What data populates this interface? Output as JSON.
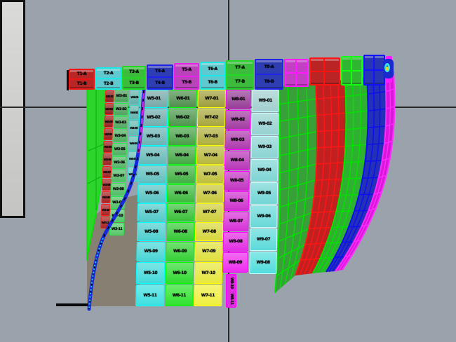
{
  "colors": {
    "background": "#9aa3ac",
    "backdrop_fill": "#d4d4d2",
    "ground_fill": "#867f72",
    "green_strip_fill": "#2cd42c",
    "green_strip_edge": "#00e400",
    "curve_blue": "#1828dc",
    "curve_magenta": "#d024d8",
    "curve_dash": "#000000",
    "curve_tail_cyan": "#22cccc",
    "curve_red_dash": "#cc3300",
    "glyph_body": "#1a2acc",
    "glyph_arc": "#2ee8e8",
    "glyph_dot": "#e8d820",
    "top": {
      "red": {
        "edge": "#f01515",
        "fill": "#b92626"
      },
      "cyan": {
        "edge": "#1ae8e8",
        "fill": "#5fc9cf"
      },
      "green": {
        "edge": "#22d822",
        "fill": "#3dbb3d"
      },
      "blue": {
        "edge": "#2222e8",
        "fill": "#2e3db2"
      },
      "magenta": {
        "edge": "#e822e8",
        "fill": "#b944b9"
      },
      "grid_magenta": {
        "fill": "#c33fc3",
        "line": "#ff1aff"
      },
      "grid_red": {
        "fill": "#bb2424",
        "line": "#ff1212"
      },
      "grid_green": {
        "fill": "#2fb52f",
        "line": "#12ff12"
      },
      "grid_blue": {
        "fill": "#2836b5",
        "line": "#1212ff"
      }
    }
  },
  "top_row": {
    "panels": [
      {
        "type": "labeled",
        "color": "red",
        "labels": [
          "T1-A",
          "T1-B"
        ]
      },
      {
        "type": "labeled",
        "color": "cyan",
        "labels": [
          "T2-A",
          "T2-B"
        ]
      },
      {
        "type": "labeled",
        "color": "green",
        "labels": [
          "T3-A",
          "T3-B"
        ]
      },
      {
        "type": "labeled",
        "color": "blue",
        "labels": [
          "T4-A",
          "T4-B"
        ]
      },
      {
        "type": "labeled",
        "color": "magenta",
        "labels": [
          "T5-A",
          "T5-B"
        ]
      },
      {
        "type": "labeled",
        "color": "cyan",
        "labels": [
          "T6-A",
          "T6-B"
        ]
      },
      {
        "type": "labeled",
        "color": "green",
        "labels": [
          "T7-A",
          "T7-B"
        ]
      },
      {
        "type": "labeled",
        "color": "blue",
        "labels": [
          "T8-A",
          "T8-B"
        ]
      },
      {
        "type": "grid",
        "color": "grid_magenta"
      },
      {
        "type": "grid",
        "color": "grid_red"
      },
      {
        "type": "grid",
        "color": "grid_green"
      },
      {
        "type": "grid",
        "color": "grid_blue"
      }
    ]
  },
  "columns": [
    {
      "name": "red-mini-column",
      "edge": "#ff1e1e",
      "top": "#8f1d1d",
      "bottom": "#a82525",
      "labels": [
        "W2-01",
        "W2-02",
        "W2-03",
        "W2-04",
        "W2-05",
        "W2-06",
        "W2-07",
        "W2-08",
        "W2-09",
        "W2-10",
        "W2-11"
      ]
    },
    {
      "name": "green-mini-column",
      "edge": "#2ae84e",
      "top": "#4f9f5f",
      "bottom": "#58c86a",
      "labels": [
        "W3-01",
        "W3-02",
        "W3-03",
        "W3-04",
        "W3-05",
        "W3-06",
        "W3-07",
        "W3-08",
        "W3-09",
        "W3-10",
        "W3-11"
      ]
    },
    {
      "name": "teal-mini-column",
      "edge": "#38d8c8",
      "top": "#63b0a8",
      "bottom": "#6cc4bc",
      "labels": [
        "W4-01",
        "W4-02",
        "W4-03",
        "W4-04",
        "W4-05",
        "W4-06"
      ]
    },
    {
      "name": "cyan-column",
      "edge": "#00ffff",
      "top": "#78a8a8",
      "bottom": "#3ee0e0",
      "labels": [
        "W5-01",
        "W5-02",
        "W5-03",
        "W5-04",
        "W5-05",
        "W5-06",
        "W5-07",
        "W5-08",
        "W5-09",
        "W5-10",
        "W5-11"
      ]
    },
    {
      "name": "green-column",
      "edge": "#00ff00",
      "top": "#4f8f4f",
      "bottom": "#2ee22e",
      "labels": [
        "W6-01",
        "W6-02",
        "W6-03",
        "W6-04",
        "W6-05",
        "W6-06",
        "W6-07",
        "W6-08",
        "W6-09",
        "W6-10",
        "W6-11"
      ]
    },
    {
      "name": "yellow-column",
      "edge": "#ffff00",
      "top": "#9f9f3c",
      "bottom": "#efef3e",
      "labels": [
        "W7-01",
        "W7-02",
        "W7-03",
        "W7-04",
        "W7-05",
        "W7-06",
        "W7-07",
        "W7-08",
        "W7-09",
        "W7-10",
        "W7-11"
      ]
    },
    {
      "name": "magenta-column",
      "edge": "#ff00ff",
      "top": "#973e97",
      "bottom": "#ee2cee",
      "labels": [
        "W8-01",
        "W8-02",
        "W8-03",
        "W8-04",
        "W8-05",
        "W8-06",
        "W8-07",
        "W8-08",
        "W8-09"
      ]
    },
    {
      "name": "light-cyan-column",
      "edge": "#c8ffff",
      "top": "#a2cfcf",
      "bottom": "#52dcdc",
      "labels": [
        "W9-01",
        "W9-02",
        "W9-03",
        "W9-04",
        "W9-05",
        "W9-06",
        "W9-07",
        "W9-08"
      ]
    }
  ],
  "tail": {
    "edge": "#ff00ff",
    "fill": "#e02ce0",
    "labels": [
      "W8-10",
      "W8-11"
    ]
  },
  "right_strips": [
    {
      "name": "hull-strip-green-1",
      "fill": "#38a038",
      "line": "#00e400"
    },
    {
      "name": "hull-strip-red",
      "fill": "#c02020",
      "line": "#ff1616"
    },
    {
      "name": "hull-strip-green-2",
      "fill": "#30b030",
      "line": "#00e400"
    },
    {
      "name": "hull-strip-blue",
      "fill": "#2330b8",
      "line": "#0d0dee"
    },
    {
      "name": "hull-strip-magenta-edge",
      "fill": "#d818d8",
      "line": "#ff2aff"
    }
  ]
}
